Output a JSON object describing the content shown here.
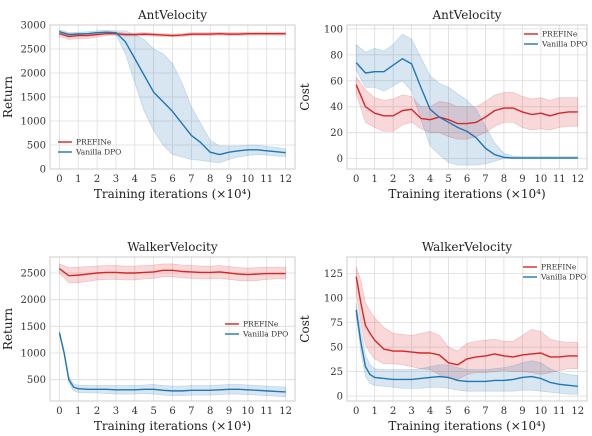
{
  "figure": {
    "colors": {
      "prefine": "#d62728",
      "vanilla": "#1f77b4"
    }
  },
  "chart_data": [
    {
      "type": "line",
      "title": "AntVelocity",
      "xlabel": "Training iterations (×10⁴)",
      "ylabel": "Return",
      "xlim": [
        -0.5,
        12.5
      ],
      "ylim": [
        0,
        3000
      ],
      "xticks": [
        0,
        1,
        2,
        3,
        4,
        5,
        6,
        7,
        8,
        9,
        10,
        11,
        12
      ],
      "yticks": [
        0,
        500,
        1000,
        1500,
        2000,
        2500,
        3000
      ],
      "grid": true,
      "legend": "bottom-left",
      "series": [
        {
          "name": "PREFINe",
          "color": "#d62728",
          "x": [
            0,
            0.5,
            1,
            1.5,
            2,
            2.5,
            3,
            3.5,
            4,
            4.5,
            5,
            5.5,
            6,
            6.5,
            7,
            7.5,
            8,
            8.5,
            9,
            9.5,
            10,
            10.5,
            11,
            11.5,
            12
          ],
          "values": [
            2820,
            2760,
            2780,
            2780,
            2800,
            2820,
            2820,
            2800,
            2800,
            2810,
            2800,
            2790,
            2780,
            2790,
            2810,
            2810,
            2810,
            2820,
            2810,
            2810,
            2820,
            2820,
            2820,
            2820,
            2820
          ],
          "band_lower": [
            2770,
            2700,
            2720,
            2720,
            2750,
            2780,
            2790,
            2770,
            2770,
            2780,
            2770,
            2760,
            2750,
            2760,
            2780,
            2780,
            2780,
            2790,
            2780,
            2780,
            2790,
            2790,
            2790,
            2790,
            2790
          ],
          "band_upper": [
            2870,
            2820,
            2830,
            2830,
            2850,
            2860,
            2850,
            2830,
            2830,
            2840,
            2830,
            2820,
            2810,
            2820,
            2840,
            2840,
            2840,
            2850,
            2840,
            2840,
            2850,
            2850,
            2850,
            2850,
            2850
          ]
        },
        {
          "name": "Vanilla DPO",
          "color": "#1f77b4",
          "x": [
            0,
            0.5,
            1,
            1.5,
            2,
            2.5,
            3,
            3.5,
            4,
            4.5,
            5,
            5.5,
            6,
            6.5,
            7,
            7.5,
            8,
            8.5,
            9,
            9.5,
            10,
            10.5,
            11,
            11.5,
            12
          ],
          "values": [
            2860,
            2800,
            2810,
            2820,
            2840,
            2850,
            2840,
            2650,
            2300,
            1950,
            1600,
            1400,
            1200,
            950,
            700,
            550,
            350,
            300,
            350,
            380,
            400,
            400,
            380,
            360,
            340
          ],
          "band_lower": [
            2820,
            2760,
            2770,
            2780,
            2800,
            2810,
            2800,
            2400,
            1800,
            1200,
            800,
            500,
            300,
            250,
            200,
            180,
            150,
            130,
            200,
            250,
            280,
            300,
            290,
            270,
            260
          ],
          "band_upper": [
            2900,
            2840,
            2850,
            2860,
            2880,
            2890,
            2880,
            2880,
            2800,
            2700,
            2500,
            2400,
            2200,
            1800,
            1300,
            950,
            600,
            480,
            480,
            480,
            500,
            500,
            470,
            450,
            420
          ]
        }
      ]
    },
    {
      "type": "line",
      "title": "AntVelocity",
      "xlabel": "Training iterations (×10⁴)",
      "ylabel": "Cost",
      "xlim": [
        -0.5,
        12.5
      ],
      "ylim": [
        -8,
        103
      ],
      "xticks": [
        0,
        1,
        2,
        3,
        4,
        5,
        6,
        7,
        8,
        9,
        10,
        11,
        12
      ],
      "yticks": [
        0,
        20,
        40,
        60,
        80,
        100
      ],
      "grid": true,
      "legend": "top-right",
      "series": [
        {
          "name": "PREFINe",
          "color": "#d62728",
          "x": [
            0,
            0.5,
            1,
            1.5,
            2,
            2.5,
            3,
            3.5,
            4,
            4.5,
            5,
            5.5,
            6,
            6.5,
            7,
            7.5,
            8,
            8.5,
            9,
            9.5,
            10,
            10.5,
            11,
            11.5,
            12
          ],
          "values": [
            57,
            40,
            35,
            33,
            33,
            37,
            38,
            31,
            30,
            32,
            30,
            27,
            27,
            28,
            32,
            37,
            39,
            39,
            36,
            34,
            35,
            33,
            35,
            36,
            36
          ],
          "band_lower": [
            50,
            28,
            24,
            21,
            21,
            26,
            28,
            23,
            20,
            20,
            17,
            15,
            15,
            17,
            20,
            25,
            28,
            28,
            24,
            22,
            23,
            22,
            24,
            25,
            25
          ],
          "band_upper": [
            63,
            53,
            47,
            45,
            46,
            49,
            48,
            40,
            40,
            44,
            43,
            40,
            40,
            40,
            44,
            49,
            51,
            51,
            48,
            46,
            47,
            45,
            47,
            47,
            47
          ]
        },
        {
          "name": "Vanilla DPO",
          "color": "#1f77b4",
          "x": [
            0,
            0.5,
            1,
            1.5,
            2,
            2.5,
            3,
            3.5,
            4,
            4.5,
            5,
            5.5,
            6,
            6.5,
            7,
            7.5,
            8,
            8.5,
            9,
            9.5,
            10,
            10.5,
            11,
            11.5,
            12
          ],
          "values": [
            74,
            66,
            67,
            67,
            72,
            77,
            73,
            55,
            38,
            32,
            28,
            24,
            21,
            16,
            8,
            3,
            1,
            0.5,
            0.5,
            0.5,
            0.5,
            0.5,
            0.5,
            0.5,
            0.5
          ],
          "band_lower": [
            68,
            55,
            55,
            52,
            56,
            60,
            52,
            30,
            10,
            3,
            -3,
            -5,
            -5,
            -5,
            -4,
            -2,
            0,
            0,
            0,
            0,
            0,
            0,
            0,
            0,
            0
          ],
          "band_upper": [
            88,
            82,
            85,
            83,
            88,
            96,
            92,
            78,
            64,
            58,
            55,
            50,
            45,
            38,
            25,
            12,
            4,
            2,
            1.5,
            1.5,
            1.5,
            1.5,
            1.5,
            1.5,
            1.5
          ]
        }
      ]
    },
    {
      "type": "line",
      "title": "WalkerVelocity",
      "xlabel": "Training iterations (×10⁴)",
      "ylabel": "Return",
      "xlim": [
        -0.5,
        12.5
      ],
      "ylim": [
        100,
        2800
      ],
      "xticks": [
        0,
        1,
        2,
        3,
        4,
        5,
        6,
        7,
        8,
        9,
        10,
        11,
        12
      ],
      "yticks": [
        500,
        1000,
        1500,
        2000,
        2500
      ],
      "grid": true,
      "legend": "center-right",
      "series": [
        {
          "name": "PREFINe",
          "color": "#d62728",
          "x": [
            0,
            0.5,
            1,
            1.5,
            2,
            2.5,
            3,
            3.5,
            4,
            4.5,
            5,
            5.5,
            6,
            6.5,
            7,
            7.5,
            8,
            8.5,
            9,
            9.5,
            10,
            10.5,
            11,
            11.5,
            12
          ],
          "values": [
            2580,
            2450,
            2460,
            2480,
            2500,
            2510,
            2510,
            2500,
            2500,
            2510,
            2520,
            2550,
            2550,
            2530,
            2520,
            2510,
            2510,
            2520,
            2500,
            2480,
            2470,
            2480,
            2490,
            2490,
            2490
          ],
          "band_lower": [
            2500,
            2320,
            2320,
            2340,
            2370,
            2380,
            2380,
            2370,
            2370,
            2390,
            2400,
            2430,
            2430,
            2410,
            2400,
            2390,
            2390,
            2400,
            2380,
            2360,
            2350,
            2360,
            2380,
            2390,
            2390
          ],
          "band_upper": [
            2670,
            2600,
            2610,
            2620,
            2630,
            2640,
            2640,
            2630,
            2630,
            2640,
            2650,
            2670,
            2670,
            2650,
            2640,
            2630,
            2630,
            2640,
            2620,
            2600,
            2590,
            2600,
            2610,
            2610,
            2610
          ]
        },
        {
          "name": "Vanilla DPO",
          "color": "#1f77b4",
          "x": [
            0,
            0.25,
            0.5,
            0.75,
            1,
            1.5,
            2,
            2.5,
            3,
            3.5,
            4,
            4.5,
            5,
            5.5,
            6,
            6.5,
            7,
            7.5,
            8,
            8.5,
            9,
            9.5,
            10,
            10.5,
            11,
            11.5,
            12
          ],
          "values": [
            1380,
            1000,
            500,
            360,
            330,
            320,
            320,
            320,
            310,
            310,
            310,
            320,
            320,
            300,
            290,
            290,
            300,
            300,
            300,
            310,
            320,
            320,
            310,
            300,
            290,
            280,
            270
          ],
          "band_lower": [
            1350,
            960,
            440,
            290,
            260,
            250,
            250,
            240,
            230,
            230,
            230,
            240,
            230,
            210,
            200,
            200,
            210,
            210,
            210,
            220,
            230,
            230,
            220,
            210,
            200,
            190,
            180
          ],
          "band_upper": [
            1420,
            1050,
            560,
            420,
            400,
            390,
            390,
            390,
            390,
            390,
            390,
            400,
            410,
            390,
            380,
            380,
            390,
            390,
            390,
            400,
            410,
            410,
            400,
            390,
            380,
            370,
            360
          ]
        }
      ]
    },
    {
      "type": "line",
      "title": "WalkerVelocity",
      "xlabel": "Training iterations (×10⁴)",
      "ylabel": "Cost",
      "xlim": [
        -0.5,
        12.5
      ],
      "ylim": [
        -5,
        142
      ],
      "xticks": [
        0,
        1,
        2,
        3,
        4,
        5,
        6,
        7,
        8,
        9,
        10,
        11,
        12
      ],
      "yticks": [
        0,
        25,
        50,
        75,
        100,
        125
      ],
      "grid": true,
      "legend": "top-right",
      "series": [
        {
          "name": "PREFINe",
          "color": "#d62728",
          "x": [
            0,
            0.25,
            0.5,
            0.75,
            1,
            1.5,
            2,
            2.5,
            3,
            3.5,
            4,
            4.5,
            5,
            5.5,
            6,
            6.5,
            7,
            7.5,
            8,
            8.5,
            9,
            9.5,
            10,
            10.5,
            11,
            11.5,
            12
          ],
          "values": [
            122,
            95,
            72,
            64,
            57,
            48,
            46,
            46,
            45,
            44,
            44,
            42,
            34,
            32,
            38,
            40,
            41,
            43,
            41,
            40,
            42,
            43,
            44,
            40,
            40,
            41,
            41
          ],
          "band_lower": [
            105,
            75,
            52,
            44,
            38,
            33,
            33,
            32,
            30,
            28,
            27,
            22,
            18,
            17,
            22,
            24,
            24,
            25,
            26,
            25,
            25,
            24,
            22,
            24,
            26,
            28,
            28
          ],
          "band_upper": [
            132,
            118,
            95,
            87,
            80,
            70,
            64,
            63,
            62,
            64,
            66,
            62,
            50,
            46,
            54,
            56,
            57,
            58,
            56,
            56,
            62,
            68,
            66,
            58,
            56,
            55,
            55
          ]
        },
        {
          "name": "Vanilla DPO",
          "color": "#1f77b4",
          "x": [
            0,
            0.25,
            0.5,
            0.75,
            1,
            1.5,
            2,
            2.5,
            3,
            3.5,
            4,
            4.5,
            5,
            5.5,
            6,
            6.5,
            7,
            7.5,
            8,
            8.5,
            9,
            9.5,
            10,
            10.5,
            11,
            11.5,
            12
          ],
          "values": [
            88,
            55,
            30,
            22,
            19,
            18,
            17,
            17,
            17,
            18,
            19,
            20,
            19,
            16,
            15,
            15,
            15,
            16,
            16,
            17,
            19,
            20,
            18,
            14,
            12,
            11,
            10
          ],
          "band_lower": [
            82,
            45,
            20,
            13,
            11,
            10,
            9,
            8,
            8,
            8,
            9,
            9,
            8,
            6,
            5,
            5,
            5,
            5,
            5,
            5,
            6,
            6,
            5,
            4,
            3,
            2,
            2
          ],
          "band_upper": [
            95,
            68,
            42,
            32,
            28,
            27,
            27,
            27,
            27,
            28,
            30,
            32,
            32,
            29,
            27,
            27,
            27,
            28,
            29,
            31,
            34,
            36,
            34,
            28,
            24,
            22,
            21
          ]
        }
      ]
    }
  ]
}
